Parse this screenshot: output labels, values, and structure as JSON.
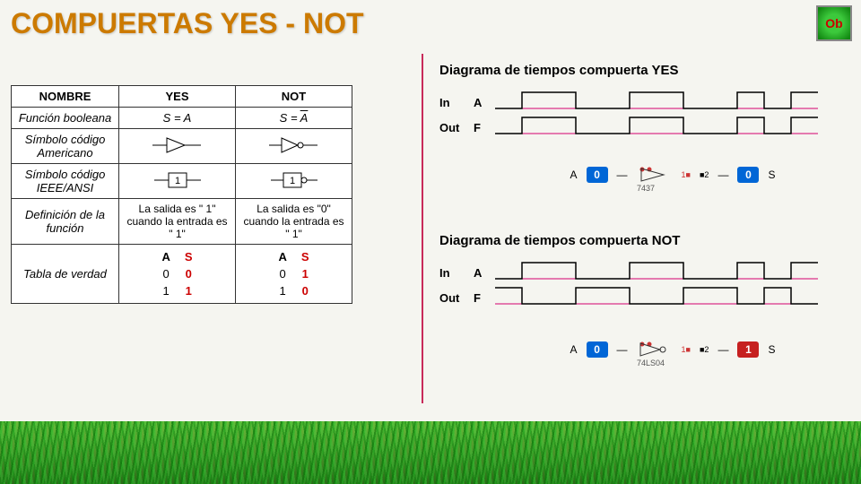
{
  "title": "COMPUERTAS YES - NOT",
  "badge": "Ob",
  "table": {
    "headers": [
      "NOMBRE",
      "YES",
      "NOT"
    ],
    "rows": {
      "func": {
        "label": "Función booleana",
        "yes": "S = A",
        "not_lhs": "S = ",
        "not_rhs": "A"
      },
      "sym_us": {
        "label": "Símbolo código Americano"
      },
      "sym_ieee": {
        "label": "Símbolo código IEEE/ANSI"
      },
      "def": {
        "label": "Definición de la función",
        "yes": "La salida es \" 1\" cuando la entrada es \" 1\"",
        "not": "La salida es \"0\" cuando la entrada es \" 1\""
      },
      "truth": {
        "label": "Tabla de verdad",
        "yes": {
          "headers": [
            "A",
            "S"
          ],
          "rows": [
            [
              "0",
              "0"
            ],
            [
              "1",
              "1"
            ]
          ]
        },
        "not": {
          "headers": [
            "A",
            "S"
          ],
          "rows": [
            [
              "0",
              "1"
            ],
            [
              "1",
              "0"
            ]
          ]
        }
      }
    }
  },
  "diag_yes_title": "Diagrama de tiempos compuerta YES",
  "diag_not_title": "Diagrama de tiempos compuerta NOT",
  "timing": {
    "in_label": "In",
    "out_label": "Out",
    "a": "A",
    "f": "F",
    "line_color": "#d4006e",
    "yes_in": [
      0,
      1,
      1,
      0,
      0,
      1,
      1,
      0,
      0,
      1,
      0,
      1
    ],
    "yes_out": [
      0,
      1,
      1,
      0,
      0,
      1,
      1,
      0,
      0,
      1,
      0,
      1
    ],
    "not_in": [
      0,
      1,
      1,
      0,
      0,
      1,
      1,
      0,
      0,
      1,
      0,
      1
    ],
    "not_out": [
      1,
      0,
      0,
      1,
      1,
      0,
      0,
      1,
      1,
      0,
      1,
      0
    ]
  },
  "sim": {
    "a_label": "A",
    "s_label": "S",
    "yes": {
      "in_val": "0",
      "in_color": "blue",
      "out_val": "0",
      "out_color": "blue",
      "chip": "7437",
      "dot1": "#c33",
      "dot2": "#c33"
    },
    "not": {
      "in_val": "0",
      "in_color": "blue",
      "out_val": "1",
      "out_color": "red",
      "chip": "74LS04",
      "dot1": "#c33",
      "dot2": "#c33"
    }
  },
  "colors": {
    "title": "#cc7a00",
    "divider": "#c82a5a",
    "truth_out": "#c00"
  }
}
